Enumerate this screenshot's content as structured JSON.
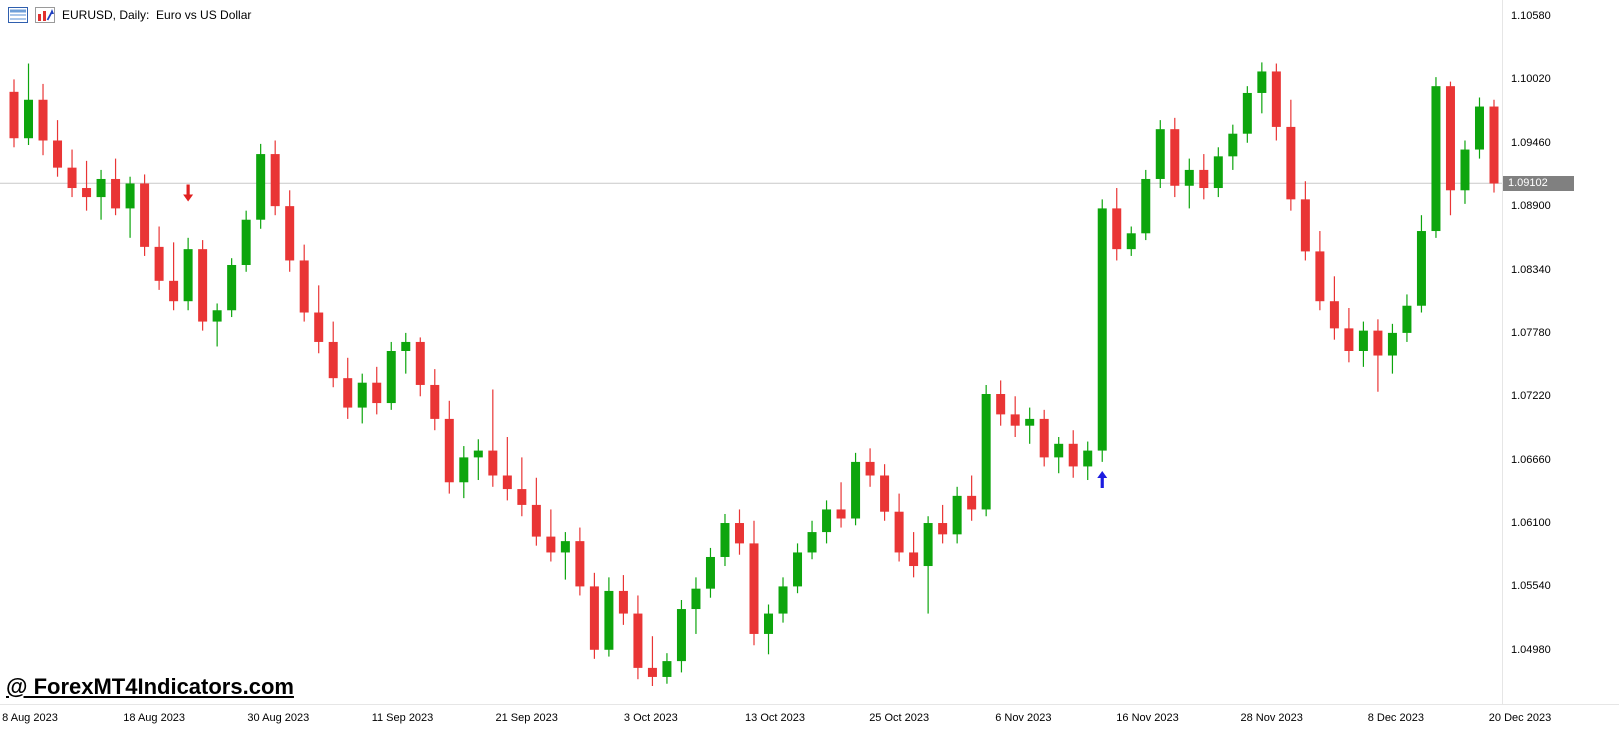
{
  "window": {
    "title": "EURUSD, Daily:  Euro vs US Dollar"
  },
  "watermark": {
    "text": "@ ForexMT4Indicators.com"
  },
  "header_icons": [
    "quotes-list-icon",
    "bar-chart-icon"
  ],
  "chart_data": {
    "type": "candlestick",
    "symbol": "EURUSD",
    "timeframe": "Daily",
    "description": "Euro vs US Dollar",
    "grid": false,
    "up_color": "#0da50d",
    "down_color": "#e93535",
    "marker_up_color": "#1c1ce0",
    "marker_down_color": "#e02020",
    "current_price": 1.09102,
    "current_price_label": "1.09102",
    "current_price_line_color": "#c9c9c9",
    "ylim": [
      1.0466,
      1.1058
    ],
    "price_axis_labels": [
      "1.10580",
      "1.10020",
      "1.09460",
      "1.08900",
      "1.08340",
      "1.07780",
      "1.07220",
      "1.06660",
      "1.06100",
      "1.05540",
      "1.04980"
    ],
    "time_axis_labels": [
      "8 Aug 2023",
      "18 Aug 2023",
      "30 Aug 2023",
      "11 Sep 2023",
      "21 Sep 2023",
      "3 Oct 2023",
      "13 Oct 2023",
      "25 Oct 2023",
      "6 Nov 2023",
      "16 Nov 2023",
      "28 Nov 2023",
      "8 Dec 2023",
      "20 Dec 2023"
    ],
    "candles": [
      [
        1.0991,
        1.1002,
        1.0942,
        1.095
      ],
      [
        1.095,
        1.1016,
        1.0944,
        1.0984
      ],
      [
        1.0984,
        1.0998,
        1.0935,
        1.0948
      ],
      [
        1.0948,
        1.0966,
        1.0916,
        1.0924
      ],
      [
        1.0924,
        1.094,
        1.0898,
        1.0906
      ],
      [
        1.0906,
        1.093,
        1.0886,
        1.0898
      ],
      [
        1.0898,
        1.0922,
        1.0878,
        1.0914
      ],
      [
        1.0914,
        1.0932,
        1.0882,
        1.0888
      ],
      [
        1.0888,
        1.0916,
        1.0862,
        1.091
      ],
      [
        1.091,
        1.0918,
        1.0846,
        1.0854
      ],
      [
        1.0854,
        1.0872,
        1.0816,
        1.0824
      ],
      [
        1.0824,
        1.0858,
        1.0798,
        1.0806
      ],
      [
        1.0806,
        1.0862,
        1.0798,
        1.0852
      ],
      [
        1.0852,
        1.086,
        1.078,
        1.0788
      ],
      [
        1.0788,
        1.0804,
        1.0766,
        1.0798
      ],
      [
        1.0798,
        1.0844,
        1.0792,
        1.0838
      ],
      [
        1.0838,
        1.0886,
        1.0832,
        1.0878
      ],
      [
        1.0878,
        1.0945,
        1.087,
        1.0936
      ],
      [
        1.0936,
        1.0948,
        1.0882,
        1.089
      ],
      [
        1.089,
        1.0904,
        1.0832,
        1.0842
      ],
      [
        1.0842,
        1.0856,
        1.0788,
        1.0796
      ],
      [
        1.0796,
        1.082,
        1.076,
        1.077
      ],
      [
        1.077,
        1.0788,
        1.073,
        1.0738
      ],
      [
        1.0738,
        1.0756,
        1.0702,
        1.0712
      ],
      [
        1.0712,
        1.0742,
        1.0698,
        1.0734
      ],
      [
        1.0734,
        1.0748,
        1.0706,
        1.0716
      ],
      [
        1.0716,
        1.077,
        1.071,
        1.0762
      ],
      [
        1.0762,
        1.0778,
        1.0742,
        1.077
      ],
      [
        1.077,
        1.0774,
        1.0722,
        1.0732
      ],
      [
        1.0732,
        1.0746,
        1.0692,
        1.0702
      ],
      [
        1.0702,
        1.0718,
        1.0636,
        1.0646
      ],
      [
        1.0646,
        1.0678,
        1.0632,
        1.0668
      ],
      [
        1.0668,
        1.0684,
        1.0648,
        1.0674
      ],
      [
        1.0674,
        1.0728,
        1.0642,
        1.0652
      ],
      [
        1.0652,
        1.0686,
        1.063,
        1.064
      ],
      [
        1.064,
        1.0668,
        1.0616,
        1.0626
      ],
      [
        1.0626,
        1.065,
        1.059,
        1.0598
      ],
      [
        1.0598,
        1.0622,
        1.0576,
        1.0584
      ],
      [
        1.0584,
        1.0602,
        1.056,
        1.0594
      ],
      [
        1.0594,
        1.0606,
        1.0546,
        1.0554
      ],
      [
        1.0554,
        1.0566,
        1.049,
        1.0498
      ],
      [
        1.0498,
        1.0562,
        1.0492,
        1.055
      ],
      [
        1.055,
        1.0564,
        1.052,
        1.053
      ],
      [
        1.053,
        1.0546,
        1.0472,
        1.0482
      ],
      [
        1.0482,
        1.051,
        1.0466,
        1.0474
      ],
      [
        1.0474,
        1.0495,
        1.0468,
        1.0488
      ],
      [
        1.0488,
        1.0542,
        1.0478,
        1.0534
      ],
      [
        1.0534,
        1.0562,
        1.0512,
        1.0552
      ],
      [
        1.0552,
        1.0588,
        1.0544,
        1.058
      ],
      [
        1.058,
        1.0618,
        1.0572,
        1.061
      ],
      [
        1.061,
        1.0622,
        1.0582,
        1.0592
      ],
      [
        1.0592,
        1.0612,
        1.0502,
        1.0512
      ],
      [
        1.0512,
        1.0538,
        1.0494,
        1.053
      ],
      [
        1.053,
        1.0562,
        1.0522,
        1.0554
      ],
      [
        1.0554,
        1.0592,
        1.0548,
        1.0584
      ],
      [
        1.0584,
        1.0612,
        1.0578,
        1.0602
      ],
      [
        1.0602,
        1.063,
        1.0592,
        1.0622
      ],
      [
        1.0622,
        1.0646,
        1.0606,
        1.0614
      ],
      [
        1.0614,
        1.0672,
        1.0608,
        1.0664
      ],
      [
        1.0664,
        1.0676,
        1.0642,
        1.0652
      ],
      [
        1.0652,
        1.0662,
        1.0612,
        1.062
      ],
      [
        1.062,
        1.0636,
        1.0576,
        1.0584
      ],
      [
        1.0584,
        1.0602,
        1.0562,
        1.0572
      ],
      [
        1.0572,
        1.0616,
        1.053,
        1.061
      ],
      [
        1.061,
        1.0626,
        1.0592,
        1.06
      ],
      [
        1.06,
        1.0642,
        1.0592,
        1.0634
      ],
      [
        1.0634,
        1.0652,
        1.0612,
        1.0622
      ],
      [
        1.0622,
        1.0732,
        1.0616,
        1.0724
      ],
      [
        1.0724,
        1.0736,
        1.0696,
        1.0706
      ],
      [
        1.0706,
        1.0722,
        1.0686,
        1.0696
      ],
      [
        1.0696,
        1.0712,
        1.068,
        1.0702
      ],
      [
        1.0702,
        1.071,
        1.066,
        1.0668
      ],
      [
        1.0668,
        1.0686,
        1.0654,
        1.068
      ],
      [
        1.068,
        1.0692,
        1.065,
        1.066
      ],
      [
        1.066,
        1.0682,
        1.0648,
        1.0674
      ],
      [
        1.0674,
        1.0896,
        1.0664,
        1.0888
      ],
      [
        1.0888,
        1.0906,
        1.0842,
        1.0852
      ],
      [
        1.0852,
        1.0872,
        1.0846,
        1.0866
      ],
      [
        1.0866,
        1.0922,
        1.086,
        1.0914
      ],
      [
        1.0914,
        1.0966,
        1.0906,
        1.0958
      ],
      [
        1.0958,
        1.0968,
        1.0898,
        1.0908
      ],
      [
        1.0908,
        1.0932,
        1.0888,
        1.0922
      ],
      [
        1.0922,
        1.0936,
        1.0896,
        1.0906
      ],
      [
        1.0906,
        1.0942,
        1.0898,
        1.0934
      ],
      [
        1.0934,
        1.0962,
        1.0922,
        1.0954
      ],
      [
        1.0954,
        1.0996,
        1.0946,
        1.099
      ],
      [
        1.099,
        1.1017,
        1.0972,
        1.1009
      ],
      [
        1.1009,
        1.1016,
        1.0948,
        1.096
      ],
      [
        1.096,
        1.0984,
        1.0886,
        1.0896
      ],
      [
        1.0896,
        1.0912,
        1.0842,
        1.085
      ],
      [
        1.085,
        1.0868,
        1.0798,
        1.0806
      ],
      [
        1.0806,
        1.0828,
        1.0772,
        1.0782
      ],
      [
        1.0782,
        1.08,
        1.0752,
        1.0762
      ],
      [
        1.0762,
        1.0788,
        1.0748,
        1.078
      ],
      [
        1.078,
        1.079,
        1.0726,
        1.0758
      ],
      [
        1.0758,
        1.0786,
        1.0742,
        1.0778
      ],
      [
        1.0778,
        1.0812,
        1.077,
        1.0802
      ],
      [
        1.0802,
        1.0882,
        1.0796,
        1.0868
      ],
      [
        1.0868,
        1.1004,
        1.0862,
        1.0996
      ],
      [
        1.0996,
        1.1,
        1.0882,
        1.0904
      ],
      [
        1.0904,
        1.0948,
        1.0892,
        1.094
      ],
      [
        1.094,
        1.0986,
        1.0932,
        1.0978
      ],
      [
        1.0978,
        1.0984,
        1.0902,
        1.091
      ]
    ],
    "markers": [
      {
        "index": 12,
        "price": 1.0902,
        "direction": "down",
        "color": "#e02020",
        "name": "sell-signal-arrow"
      },
      {
        "index": 75,
        "price": 1.0648,
        "direction": "up",
        "color": "#1c1ce0",
        "name": "buy-signal-arrow"
      }
    ]
  }
}
